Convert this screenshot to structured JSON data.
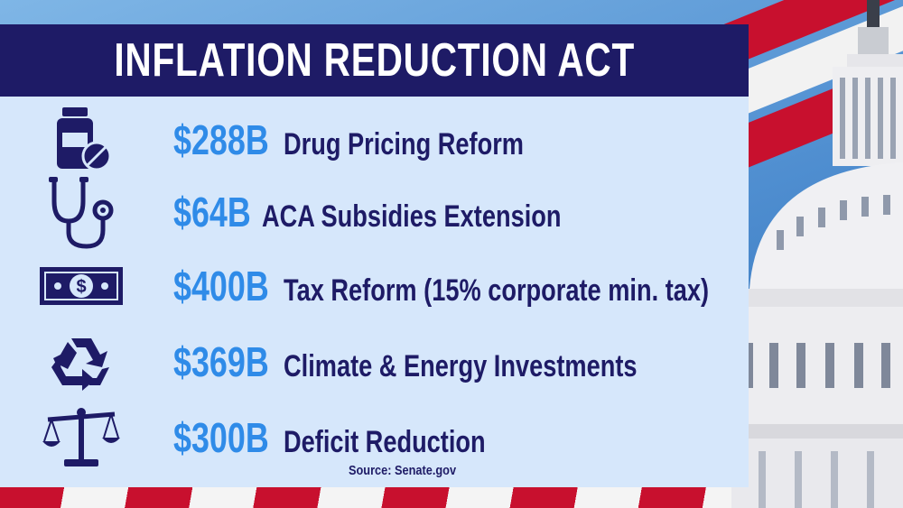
{
  "title": "INFLATION REDUCTION ACT",
  "items": [
    {
      "amount": "$288B",
      "description": "Drug Pricing Reform",
      "icon": "pill-bottle-icon"
    },
    {
      "amount": "$64B",
      "description": "ACA Subsidies Extension",
      "icon": "stethoscope-icon"
    },
    {
      "amount": "$400B",
      "description": "Tax Reform (15% corporate min. tax)",
      "icon": "dollar-bill-icon"
    },
    {
      "amount": "$369B",
      "description": "Climate & Energy Investments",
      "icon": "recycle-icon"
    },
    {
      "amount": "$300B",
      "description": "Deficit Reduction",
      "icon": "scales-icon"
    }
  ],
  "source": "Source: Senate.gov",
  "colors": {
    "navy": "#1e1b66",
    "accent_blue": "#2f8be8",
    "panel_bg": "#d6e7fb",
    "flag_red": "#c8102e"
  },
  "background": {
    "icons": [
      "american-flag-icon",
      "capitol-dome-icon"
    ]
  }
}
